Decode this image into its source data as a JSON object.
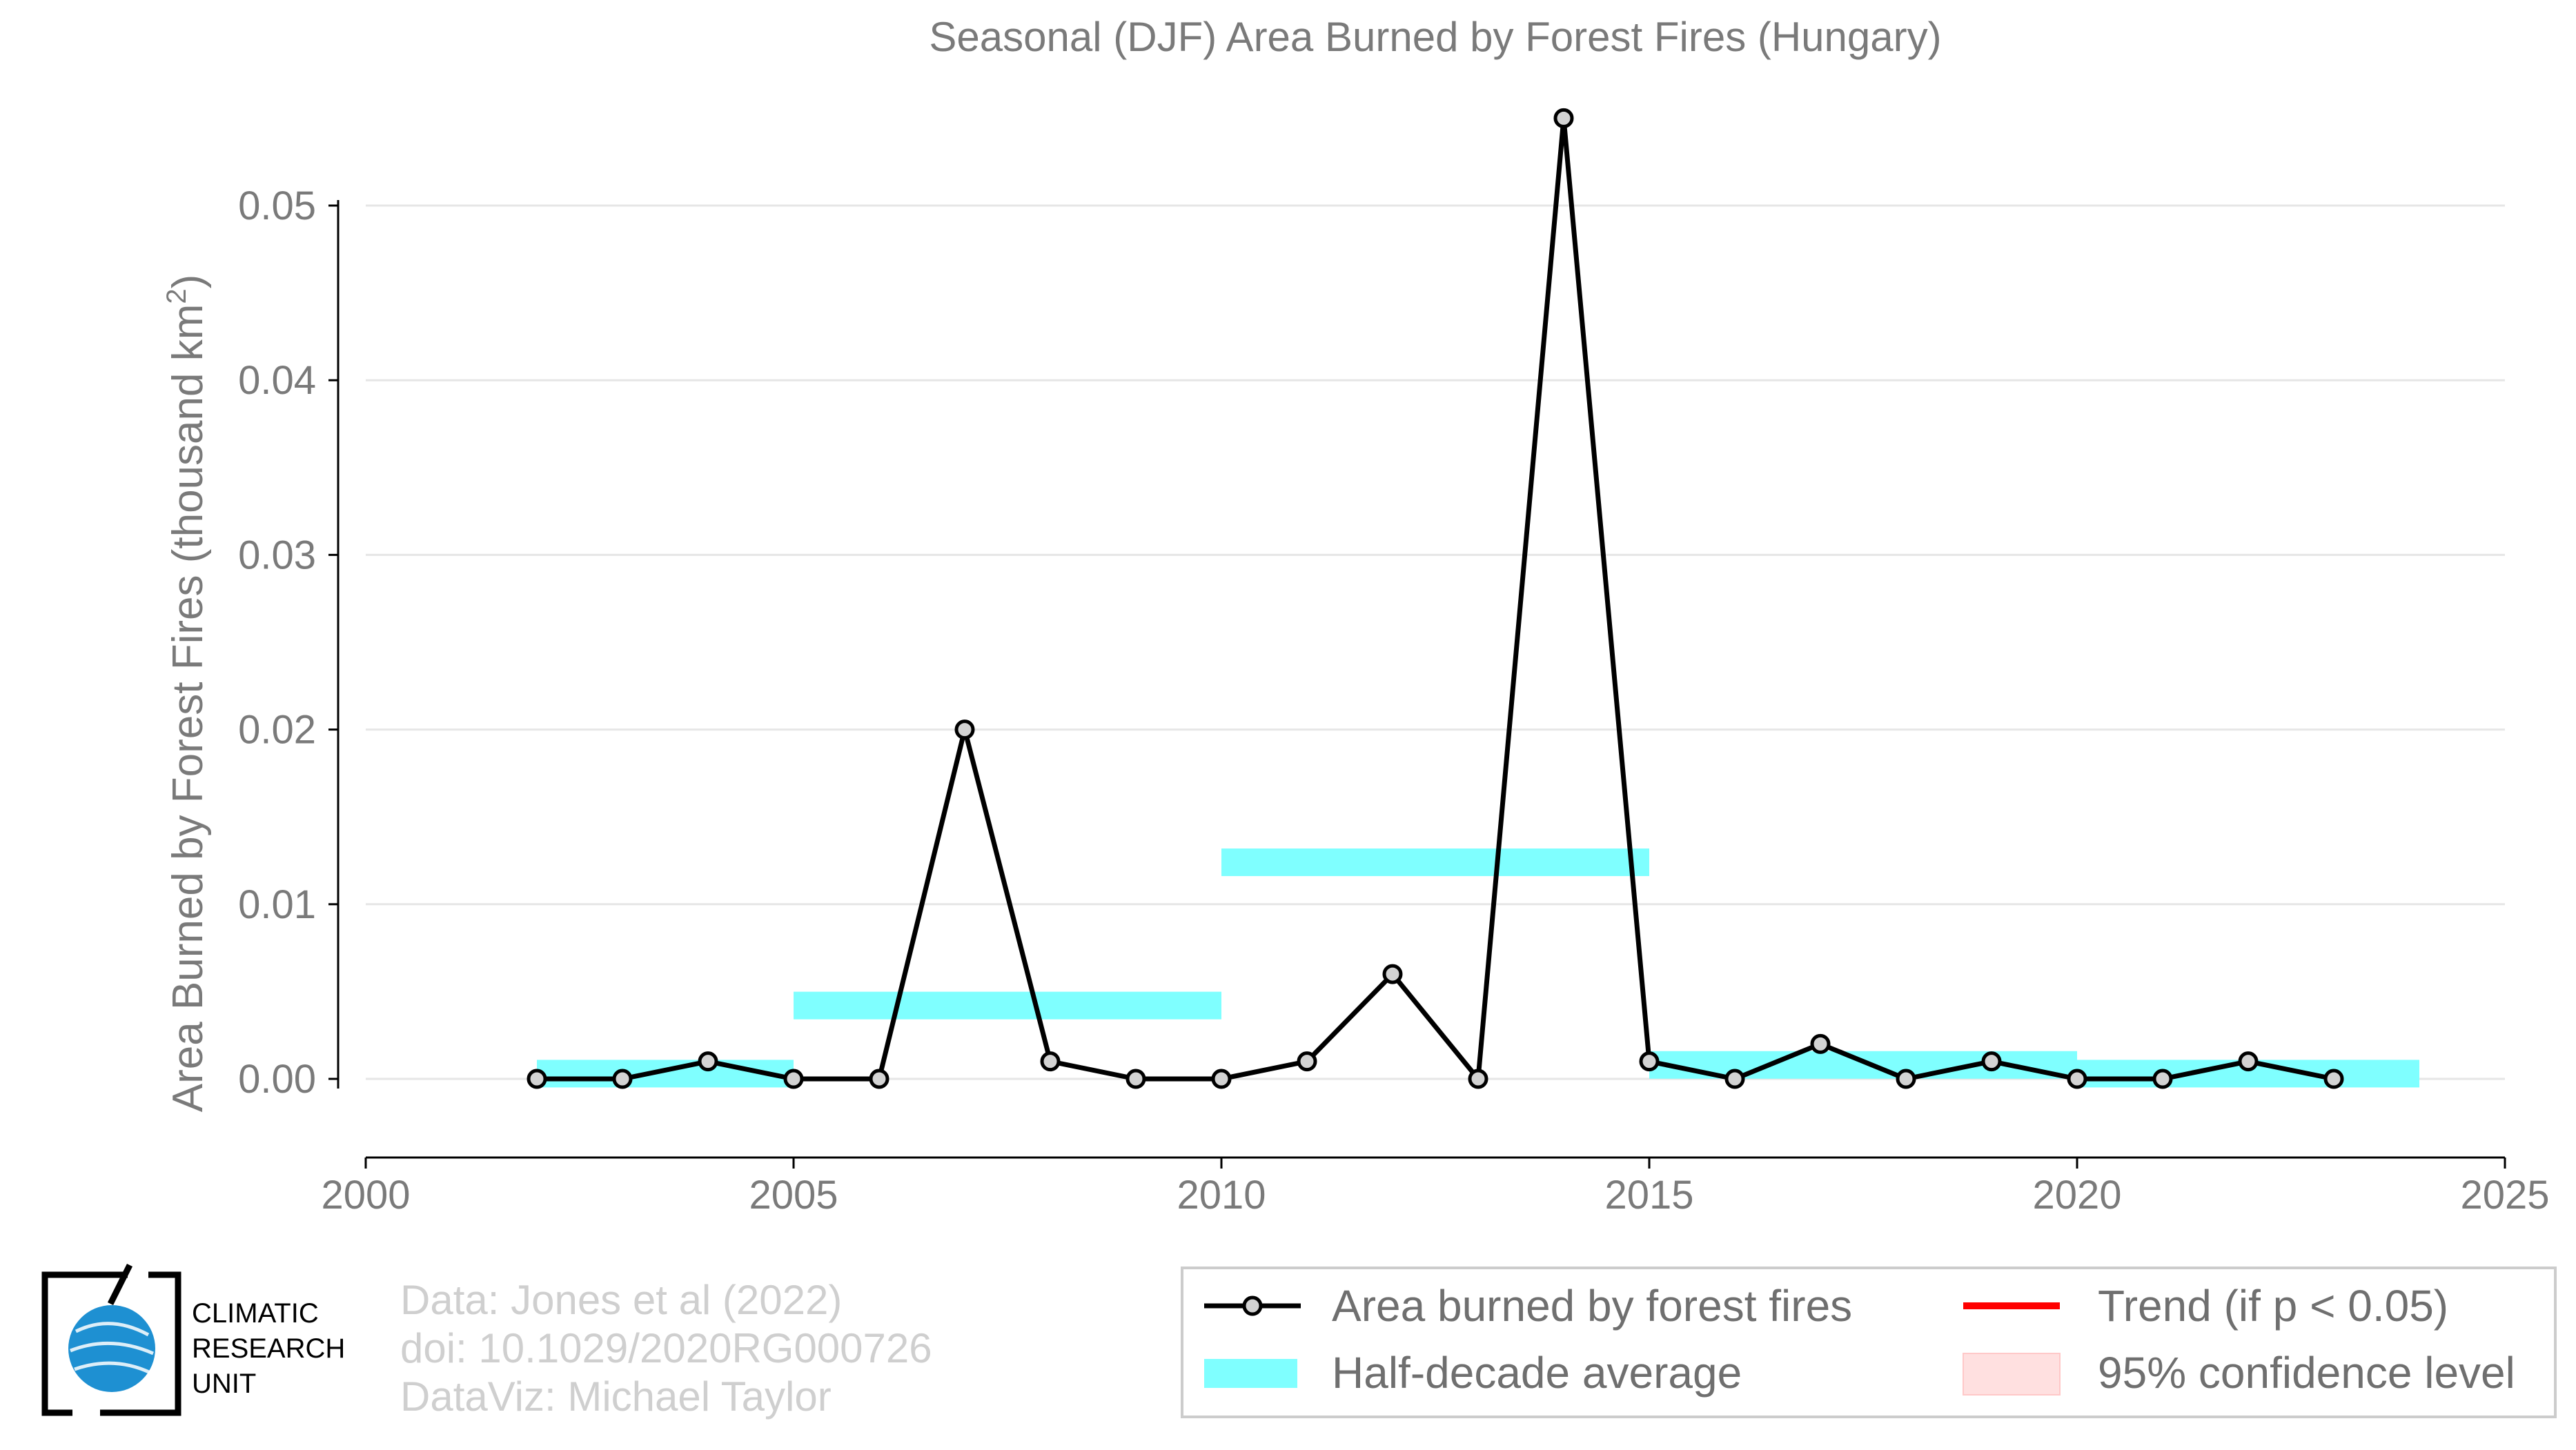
{
  "chart_data": {
    "type": "line",
    "title": "Seasonal (DJF) Area Burned by Forest Fires (Hungary)",
    "xlabel": "",
    "ylabel": "Area Burned by Forest Fires (thousand km",
    "ylabel_superscript": "2",
    "ylabel_suffix": ")",
    "xlim": [
      2000,
      2025
    ],
    "ylim": [
      -0.0045,
      0.058
    ],
    "x_ticks": [
      2000,
      2005,
      2010,
      2015,
      2020,
      2025
    ],
    "x_tick_labels": [
      "2000",
      "2005",
      "2010",
      "2015",
      "2020",
      "2025"
    ],
    "y_ticks": [
      0,
      0.01,
      0.02,
      0.03,
      0.04,
      0.05
    ],
    "y_tick_labels": [
      "0.00",
      "0.01",
      "0.02",
      "0.03",
      "0.04",
      "0.05"
    ],
    "grid": "horizontal",
    "series": [
      {
        "name": "Area burned by forest fires",
        "color": "#000000",
        "marker_fill": "#d3d3d3",
        "x": [
          2002,
          2003,
          2004,
          2005,
          2006,
          2007,
          2008,
          2009,
          2010,
          2011,
          2012,
          2013,
          2014,
          2015,
          2016,
          2017,
          2018,
          2019,
          2020,
          2021,
          2022,
          2023
        ],
        "y": [
          0.0,
          0.0,
          0.001,
          0.0,
          0.0,
          0.02,
          0.001,
          0.0,
          0.0,
          0.001,
          0.006,
          0.0,
          0.055,
          0.001,
          0.0,
          0.002,
          0.0,
          0.001,
          0.0,
          0.0,
          0.001,
          0.0
        ]
      },
      {
        "name": "Half-decade average",
        "color": "#7fffff",
        "segments": [
          {
            "x_start": 2002,
            "x_end": 2005,
            "y": 0.0003
          },
          {
            "x_start": 2005,
            "x_end": 2010,
            "y": 0.0042
          },
          {
            "x_start": 2010,
            "x_end": 2015,
            "y": 0.0124
          },
          {
            "x_start": 2015,
            "x_end": 2020,
            "y": 0.0008
          },
          {
            "x_start": 2020,
            "x_end": 2024,
            "y": 0.0003
          }
        ]
      }
    ],
    "legend": {
      "placement": "bottom-right",
      "entries": [
        {
          "label": "Area burned by forest fires",
          "kind": "line-marker",
          "color": "#000000"
        },
        {
          "label": "Trend (if p < 0.05)",
          "kind": "line",
          "color": "#ff0000"
        },
        {
          "label": "Half-decade average",
          "kind": "band",
          "color": "#7fffff"
        },
        {
          "label": "95% confidence level",
          "kind": "band",
          "color": "#ffe0e0"
        }
      ]
    }
  },
  "credits": {
    "line1": "Data: Jones et al (2022)",
    "line2": "doi: 10.1029/2020RG000726",
    "line3": "DataViz: Michael Taylor"
  },
  "logo": {
    "line1": "CLIMATIC",
    "line2": "RESEARCH",
    "line3": "UNIT",
    "globe_color": "#1e90d2"
  }
}
